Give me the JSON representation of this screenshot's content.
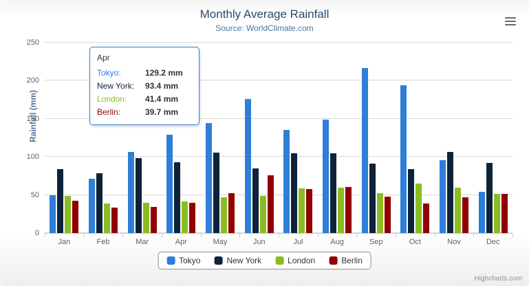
{
  "header": {
    "title": "Monthly Average Rainfall",
    "subtitle": "Source: WorldClimate.com"
  },
  "chart_data": {
    "type": "bar",
    "title": "Monthly Average Rainfall",
    "subtitle": "Source: WorldClimate.com",
    "xlabel": "",
    "ylabel": "Rainfall (mm)",
    "ylim": [
      0,
      250
    ],
    "yticks": [
      0,
      50,
      100,
      150,
      200,
      250
    ],
    "grid": true,
    "legend_position": "bottom",
    "categories": [
      "Jan",
      "Feb",
      "Mar",
      "Apr",
      "May",
      "Jun",
      "Jul",
      "Aug",
      "Sep",
      "Oct",
      "Nov",
      "Dec"
    ],
    "series": [
      {
        "name": "Tokyo",
        "color": "#2f7ed8",
        "values": [
          49.9,
          71.5,
          106.4,
          129.2,
          144.0,
          176.0,
          135.6,
          148.5,
          216.4,
          194.1,
          95.6,
          54.4
        ]
      },
      {
        "name": "New York",
        "color": "#0d233a",
        "values": [
          83.6,
          78.8,
          98.5,
          93.4,
          106.0,
          84.5,
          105.0,
          104.3,
          91.2,
          83.5,
          106.6,
          92.3
        ]
      },
      {
        "name": "London",
        "color": "#8bbc21",
        "values": [
          48.9,
          38.8,
          39.3,
          41.4,
          47.0,
          48.3,
          59.0,
          59.6,
          52.4,
          65.2,
          59.3,
          51.2
        ]
      },
      {
        "name": "Berlin",
        "color": "#910000",
        "values": [
          42.4,
          33.2,
          34.5,
          39.7,
          52.6,
          75.5,
          57.4,
          60.4,
          47.6,
          39.1,
          46.8,
          51.1
        ]
      }
    ]
  },
  "tooltip": {
    "category": "Apr",
    "border_color": "#2f7ed8",
    "rows": [
      {
        "name": "Tokyo:",
        "value": "129.2 mm",
        "color": "#2f7ed8"
      },
      {
        "name": "New York:",
        "value": "93.4 mm",
        "color": "#0d233a"
      },
      {
        "name": "London:",
        "value": "41.4 mm",
        "color": "#8bbc21"
      },
      {
        "name": "Berlin:",
        "value": "39.7 mm",
        "color": "#910000"
      }
    ]
  },
  "legend": {
    "items": [
      "Tokyo",
      "New York",
      "London",
      "Berlin"
    ]
  },
  "credits": "Highcharts.com"
}
